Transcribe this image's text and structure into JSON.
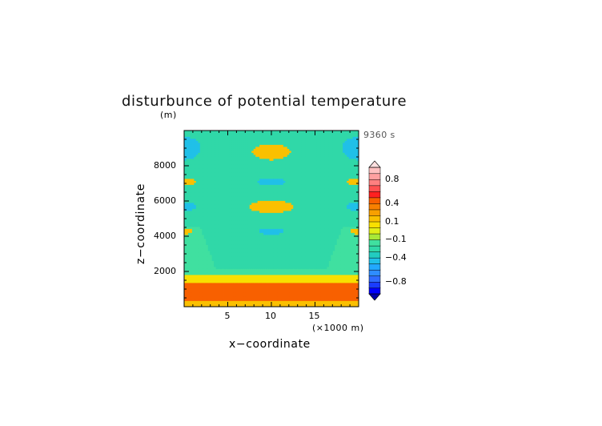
{
  "chart_data": {
    "type": "heatmap",
    "title": "disturbunce of potential temperature",
    "xlabel": "x−coordinate",
    "ylabel": "z−coordinate",
    "x_unit_label": "(×1000 m)",
    "y_unit_label": "(m)",
    "time_label": "9360 s",
    "xlim": [
      0,
      20
    ],
    "ylim": [
      0,
      10000
    ],
    "x_ticks": [
      5,
      10,
      15
    ],
    "y_ticks": [
      2000,
      4000,
      6000,
      8000
    ],
    "x_tick_labels": [
      "5",
      "10",
      "15"
    ],
    "y_tick_labels": [
      "2000",
      "4000",
      "6000",
      "8000"
    ],
    "colorbar": {
      "levels": [
        -1.0,
        -0.9,
        -0.8,
        -0.7,
        -0.6,
        -0.5,
        -0.4,
        -0.3,
        -0.2,
        -0.1,
        -0.05,
        0.05,
        0.1,
        0.2,
        0.3,
        0.4,
        0.5,
        0.6,
        0.7,
        0.8,
        0.9,
        1.0
      ],
      "colors": [
        "#0000ff",
        "#1a3cff",
        "#2f6bff",
        "#2f8dff",
        "#22a8ff",
        "#20c0e8",
        "#22ccc0",
        "#30d8a8",
        "#40e0a0",
        "#a8e838",
        "#e0ee18",
        "#f8e000",
        "#fac000",
        "#f8a000",
        "#f88000",
        "#f86000",
        "#ff2020",
        "#ff5050",
        "#ff8080",
        "#ffa0a0",
        "#ffc0c0"
      ],
      "under_color": "#0000aa",
      "over_color": "#ffe0e0",
      "labels": [
        {
          "value": 0.8,
          "text": "0.8"
        },
        {
          "value": 0.4,
          "text": "0.4"
        },
        {
          "value": 0.1,
          "text": "0.1"
        },
        {
          "value": -0.1,
          "text": "−0.1"
        },
        {
          "value": -0.4,
          "text": "−0.4"
        },
        {
          "value": -0.8,
          "text": "−0.8"
        }
      ]
    },
    "field_features": [
      {
        "x": 10,
        "z": 8800,
        "value": 0.15,
        "sx": 2.2,
        "sz": 450
      },
      {
        "x": 10,
        "z": 5700,
        "value": 0.15,
        "sx": 2.6,
        "sz": 350
      },
      {
        "x": 10,
        "z": 7100,
        "value": -0.45,
        "sx": 1.7,
        "sz": 180
      },
      {
        "x": 10,
        "z": 4300,
        "value": -0.45,
        "sx": 1.5,
        "sz": 180
      },
      {
        "x": 0,
        "z": 9000,
        "value": -0.5,
        "sx": 1.9,
        "sz": 650
      },
      {
        "x": 20,
        "z": 9000,
        "value": -0.5,
        "sx": 1.9,
        "sz": 650
      },
      {
        "x": 0,
        "z": 5700,
        "value": -0.5,
        "sx": 1.4,
        "sz": 250
      },
      {
        "x": 20,
        "z": 5700,
        "value": -0.5,
        "sx": 1.4,
        "sz": 250
      },
      {
        "x": 0,
        "z": 7100,
        "value": 0.1,
        "sx": 1.4,
        "sz": 220
      },
      {
        "x": 20,
        "z": 7100,
        "value": 0.1,
        "sx": 1.4,
        "sz": 220
      },
      {
        "x": 0,
        "z": 4300,
        "value": 0.12,
        "sx": 1.0,
        "sz": 170
      },
      {
        "x": 20,
        "z": 4300,
        "value": 0.12,
        "sx": 1.0,
        "sz": 170
      }
    ],
    "field_layers": [
      {
        "z_min": 0,
        "z_max": 350,
        "value": 0.12
      },
      {
        "z_min": 350,
        "z_max": 1400,
        "value": 0.45
      },
      {
        "z_min": 1400,
        "z_max": 1800,
        "value": 0.08
      },
      {
        "z_min": 1800,
        "z_max": 2200,
        "value": -0.15
      }
    ],
    "background_value": -0.3
  }
}
